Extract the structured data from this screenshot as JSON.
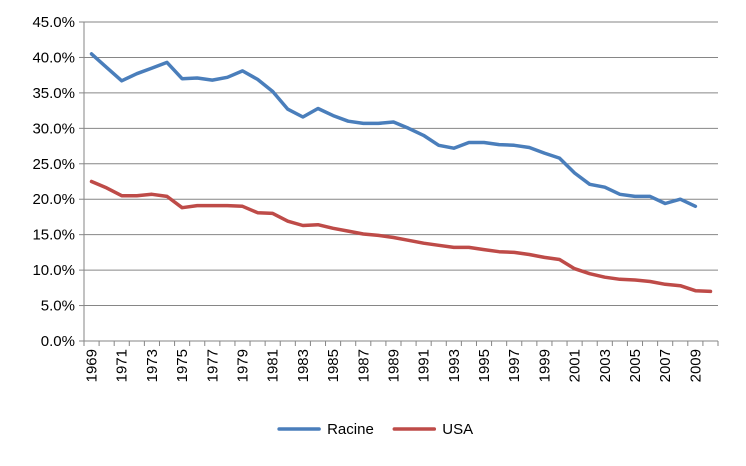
{
  "chart_data": {
    "type": "line",
    "title": "",
    "xlabel": "",
    "ylabel": "",
    "ylim": [
      0,
      45
    ],
    "y_tick_step": 5,
    "y_tick_labels": [
      "0.0%",
      "5.0%",
      "10.0%",
      "15.0%",
      "20.0%",
      "25.0%",
      "30.0%",
      "35.0%",
      "40.0%",
      "45.0%"
    ],
    "x": [
      1969,
      1970,
      1971,
      1972,
      1973,
      1974,
      1975,
      1976,
      1977,
      1978,
      1979,
      1980,
      1981,
      1982,
      1983,
      1984,
      1985,
      1986,
      1987,
      1988,
      1989,
      1990,
      1991,
      1992,
      1993,
      1994,
      1995,
      1996,
      1997,
      1998,
      1999,
      2000,
      2001,
      2002,
      2003,
      2004,
      2005,
      2006,
      2007,
      2008,
      2009,
      2010
    ],
    "x_tick_labels": [
      "1969",
      "1971",
      "1973",
      "1975",
      "1977",
      "1979",
      "1981",
      "1983",
      "1985",
      "1987",
      "1989",
      "1991",
      "1993",
      "1995",
      "1997",
      "1999",
      "2001",
      "2003",
      "2005",
      "2007",
      "2009"
    ],
    "grid": "horizontal",
    "legend_position": "bottom",
    "series": [
      {
        "name": "Racine",
        "color": "#4a7ebb",
        "values": [
          40.5,
          38.6,
          36.7,
          37.7,
          38.5,
          39.3,
          37.0,
          37.1,
          36.8,
          37.2,
          38.1,
          36.9,
          35.2,
          32.7,
          31.6,
          32.8,
          31.8,
          31.0,
          30.7,
          30.7,
          30.9,
          30.0,
          29.0,
          27.6,
          27.2,
          28.0,
          28.0,
          27.7,
          27.6,
          27.3,
          26.5,
          25.8,
          23.7,
          22.1,
          21.7,
          20.7,
          20.4,
          20.4,
          19.4,
          20.0,
          19.0,
          null
        ]
      },
      {
        "name": "USA",
        "color": "#be4b48",
        "values": [
          22.5,
          21.6,
          20.5,
          20.5,
          20.7,
          20.4,
          18.8,
          19.1,
          19.1,
          19.1,
          19.0,
          18.1,
          18.0,
          16.9,
          16.3,
          16.4,
          15.9,
          15.5,
          15.1,
          14.9,
          14.6,
          14.2,
          13.8,
          13.5,
          13.2,
          13.2,
          12.9,
          12.6,
          12.5,
          12.2,
          11.8,
          11.5,
          10.2,
          9.5,
          9.0,
          8.7,
          8.6,
          8.4,
          8.0,
          7.8,
          7.1,
          7.0
        ]
      }
    ]
  }
}
